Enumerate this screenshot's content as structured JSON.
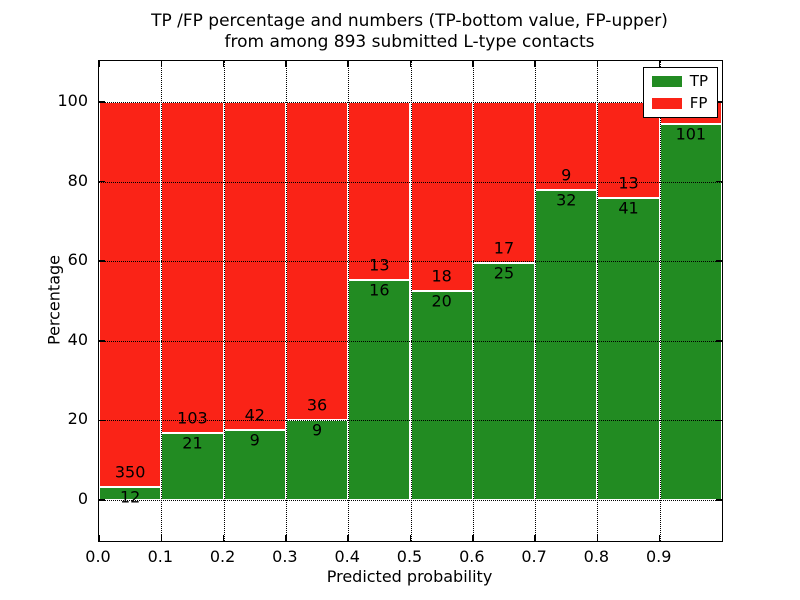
{
  "figure": {
    "title_line1": "TP /FP percentage and numbers (TP-bottom value, FP-upper)",
    "title_line2": "from among 893 submitted L-type contacts",
    "background_color": "#ffffff"
  },
  "chart_data": {
    "type": "bar",
    "stacked": true,
    "title": "TP /FP percentage and numbers (TP-bottom value, FP-upper) from among 893 submitted L-type contacts",
    "xlabel": "Predicted probability",
    "ylabel": "Percentage",
    "xlim": [
      0.0,
      1.0
    ],
    "ylim": [
      -10,
      110
    ],
    "x_tick_labels": [
      "0.0",
      "0.1",
      "0.2",
      "0.3",
      "0.4",
      "0.5",
      "0.6",
      "0.7",
      "0.8",
      "0.9"
    ],
    "y_tick_values": [
      0,
      20,
      40,
      60,
      80,
      100
    ],
    "grid_style": "dotted",
    "bar_edge_color": "#ffffff",
    "series": [
      {
        "name": "TP",
        "color": "#228b22"
      },
      {
        "name": "FP",
        "color": "#fa2317"
      }
    ],
    "legend": {
      "position": "upper-right",
      "entries": [
        {
          "label": "TP",
          "color": "#228b22"
        },
        {
          "label": "FP",
          "color": "#fa2317"
        }
      ]
    },
    "bins": [
      {
        "x_start": 0.0,
        "x_end": 0.1,
        "tp_label": "12",
        "fp_label": "350",
        "tp_pct": 3.3,
        "fp_pct": 96.7
      },
      {
        "x_start": 0.1,
        "x_end": 0.2,
        "tp_label": "21",
        "fp_label": "103",
        "tp_pct": 16.9,
        "fp_pct": 83.1
      },
      {
        "x_start": 0.2,
        "x_end": 0.3,
        "tp_label": "9",
        "fp_label": "42",
        "tp_pct": 17.6,
        "fp_pct": 82.4
      },
      {
        "x_start": 0.3,
        "x_end": 0.4,
        "tp_label": "9",
        "fp_label": "36",
        "tp_pct": 20.0,
        "fp_pct": 80.0
      },
      {
        "x_start": 0.4,
        "x_end": 0.5,
        "tp_label": "16",
        "fp_label": "13",
        "tp_pct": 55.2,
        "fp_pct": 44.8
      },
      {
        "x_start": 0.5,
        "x_end": 0.6,
        "tp_label": "20",
        "fp_label": "18",
        "tp_pct": 52.6,
        "fp_pct": 47.4
      },
      {
        "x_start": 0.6,
        "x_end": 0.7,
        "tp_label": "25",
        "fp_label": "17",
        "tp_pct": 59.5,
        "fp_pct": 40.5
      },
      {
        "x_start": 0.7,
        "x_end": 0.8,
        "tp_label": "32",
        "fp_label": "9",
        "tp_pct": 78.0,
        "fp_pct": 22.0
      },
      {
        "x_start": 0.8,
        "x_end": 0.9,
        "tp_label": "41",
        "fp_label": "13",
        "tp_pct": 75.9,
        "fp_pct": 24.1
      },
      {
        "x_start": 0.9,
        "x_end": 1.0,
        "tp_label": "101",
        "fp_label": "",
        "tp_pct": 94.4,
        "fp_pct": 5.6
      }
    ]
  }
}
